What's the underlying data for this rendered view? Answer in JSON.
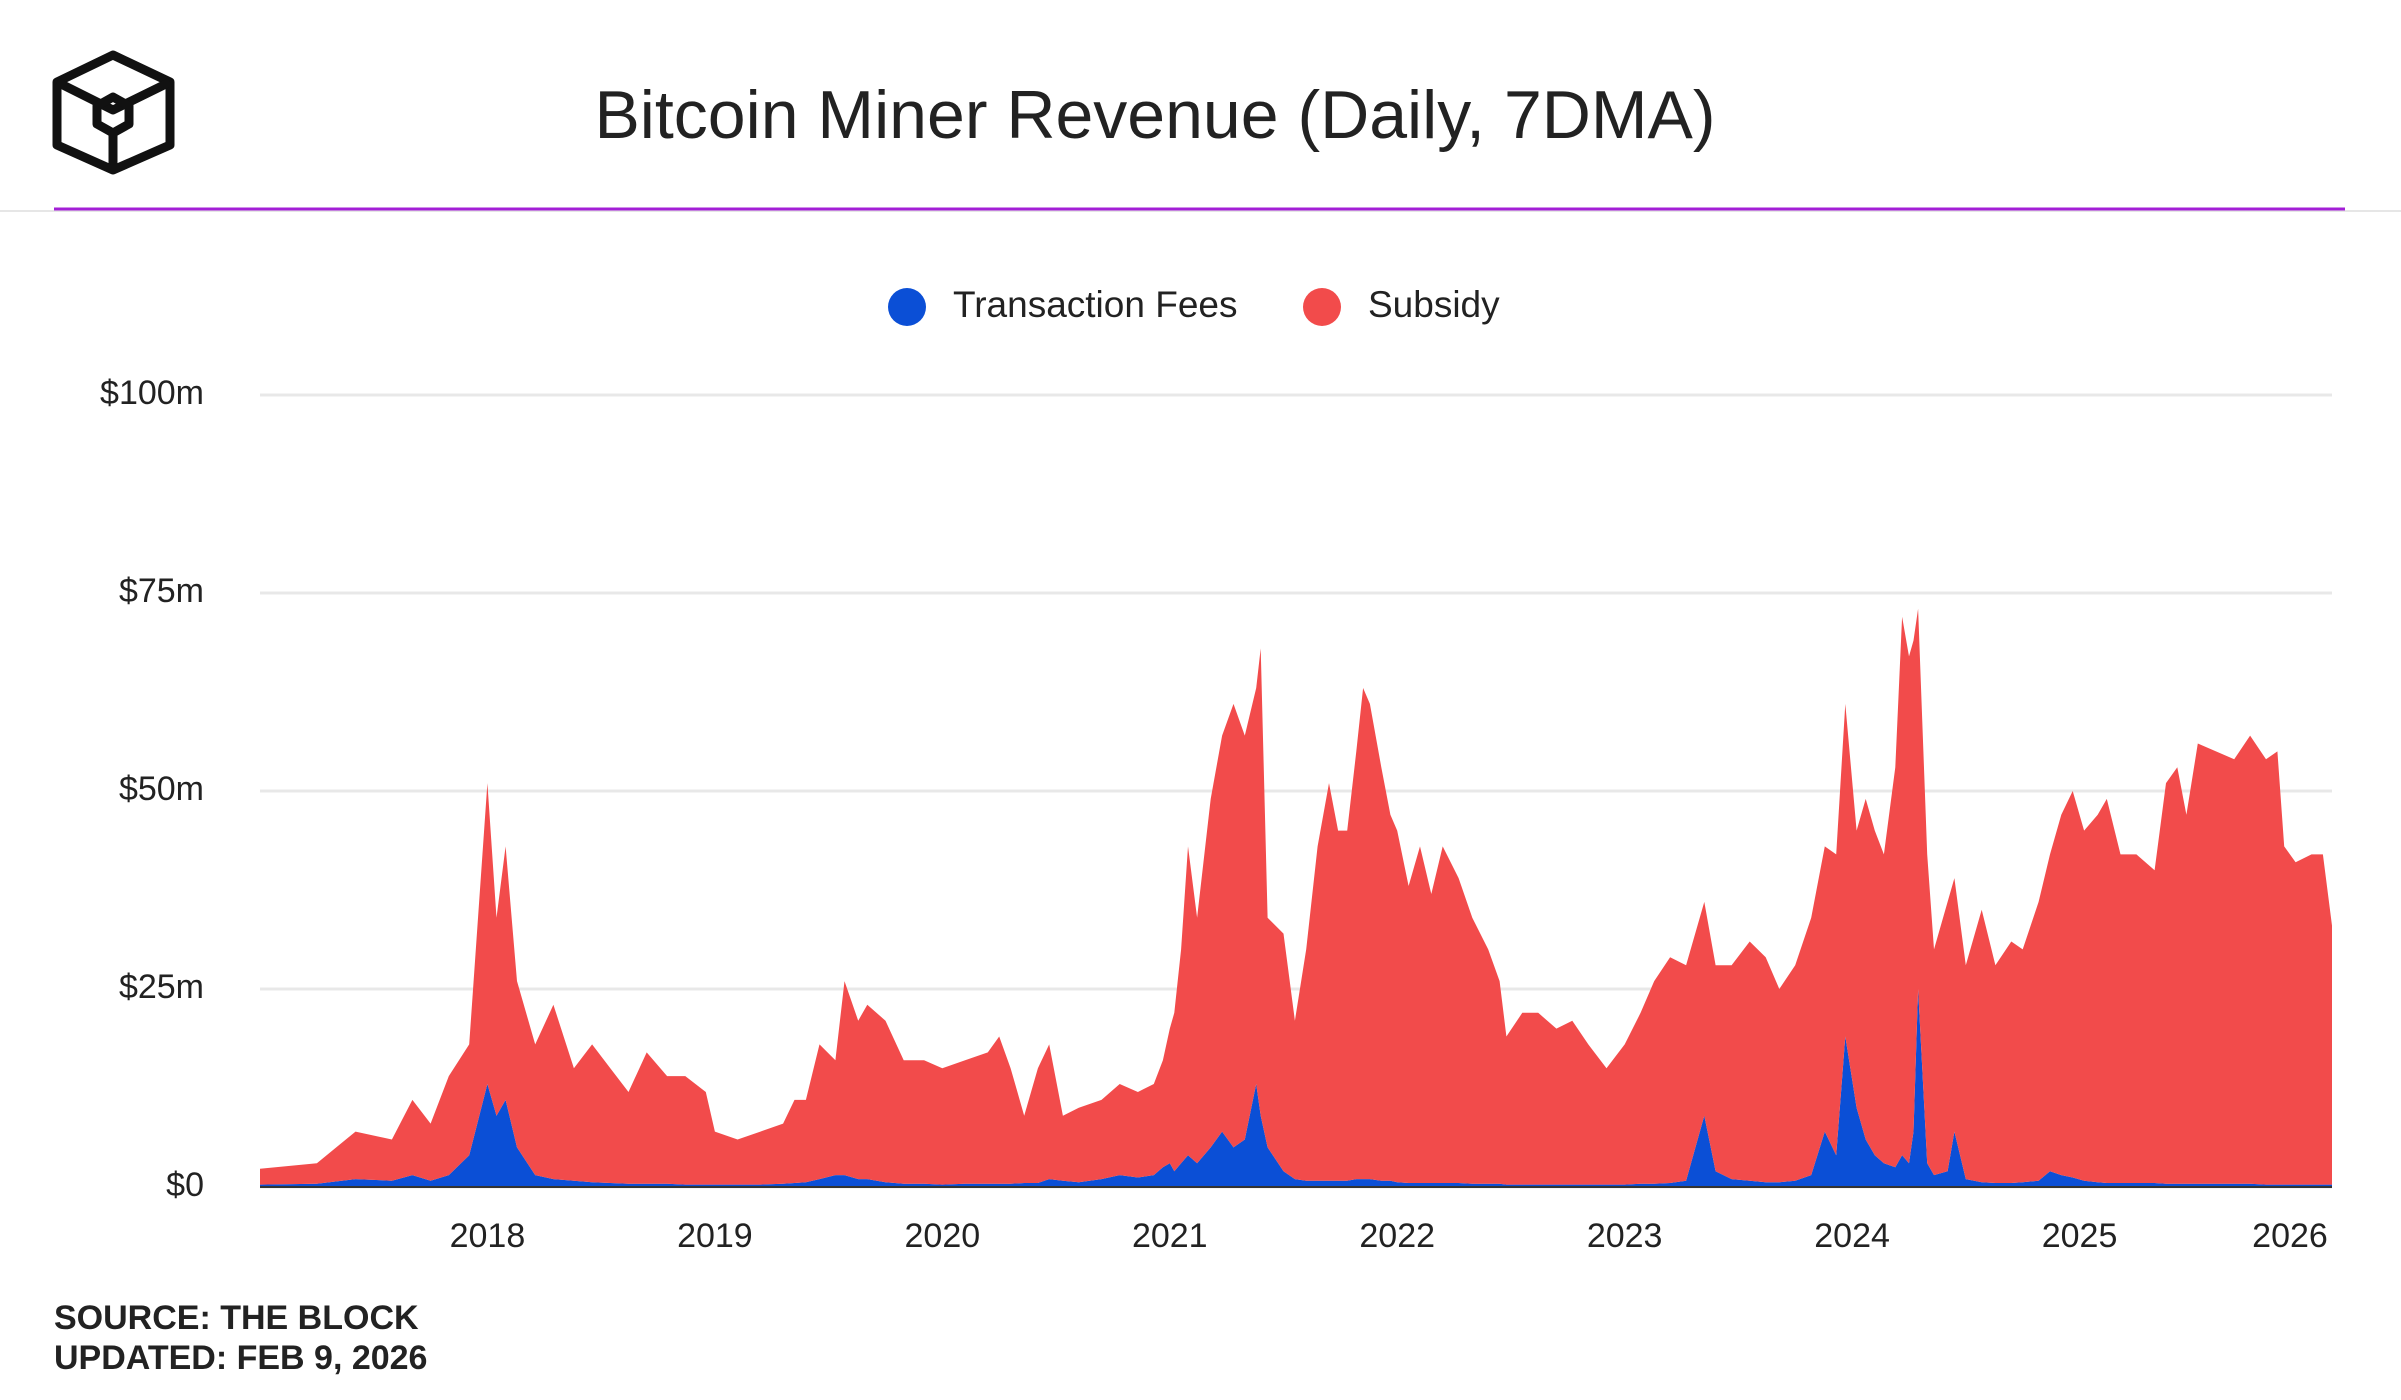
{
  "chart_data": {
    "type": "stacked-area",
    "title": "Bitcoin Miner Revenue (Daily, 7DMA)",
    "source": "SOURCE: THE BLOCK",
    "updated": "UPDATED: FEB 9, 2026",
    "x": [
      2017.0,
      2017.25,
      2017.42,
      2017.58,
      2017.67,
      2017.75,
      2017.83,
      2017.92,
      2018.0,
      2018.04,
      2018.08,
      2018.13,
      2018.21,
      2018.29,
      2018.38,
      2018.46,
      2018.54,
      2018.62,
      2018.7,
      2018.79,
      2018.87,
      2018.96,
      2019.0,
      2019.1,
      2019.2,
      2019.3,
      2019.35,
      2019.4,
      2019.46,
      2019.53,
      2019.57,
      2019.63,
      2019.67,
      2019.75,
      2019.83,
      2019.92,
      2020.0,
      2020.1,
      2020.2,
      2020.25,
      2020.3,
      2020.36,
      2020.42,
      2020.47,
      2020.53,
      2020.6,
      2020.7,
      2020.78,
      2020.86,
      2020.93,
      2020.97,
      2021.0,
      2021.02,
      2021.05,
      2021.08,
      2021.12,
      2021.18,
      2021.23,
      2021.28,
      2021.33,
      2021.38,
      2021.4,
      2021.43,
      2021.5,
      2021.55,
      2021.6,
      2021.65,
      2021.7,
      2021.74,
      2021.78,
      2021.82,
      2021.85,
      2021.88,
      2021.93,
      2021.97,
      2022.0,
      2022.05,
      2022.1,
      2022.15,
      2022.2,
      2022.27,
      2022.33,
      2022.4,
      2022.45,
      2022.48,
      2022.55,
      2022.62,
      2022.7,
      2022.77,
      2022.84,
      2022.92,
      2023.0,
      2023.07,
      2023.13,
      2023.2,
      2023.27,
      2023.35,
      2023.4,
      2023.47,
      2023.55,
      2023.62,
      2023.68,
      2023.75,
      2023.82,
      2023.88,
      2023.93,
      2023.97,
      2024.02,
      2024.06,
      2024.1,
      2024.14,
      2024.19,
      2024.22,
      2024.25,
      2024.27,
      2024.29,
      2024.33,
      2024.36,
      2024.42,
      2024.45,
      2024.5,
      2024.57,
      2024.63,
      2024.7,
      2024.75,
      2024.82,
      2024.87,
      2024.92,
      2024.97,
      2025.02,
      2025.08,
      2025.12,
      2025.18,
      2025.25,
      2025.33,
      2025.38,
      2025.43,
      2025.47,
      2025.52,
      2025.6,
      2025.68,
      2025.75,
      2025.82,
      2025.87,
      2025.9,
      2025.95,
      2026.02,
      2026.07,
      2026.11
    ],
    "series": [
      {
        "name": "Transaction Fees",
        "color": "#0b4fd6",
        "values": [
          0.3,
          0.4,
          1,
          0.8,
          1.5,
          0.8,
          1.5,
          4,
          13,
          9,
          11,
          5,
          1.5,
          1,
          0.8,
          0.6,
          0.5,
          0.4,
          0.4,
          0.4,
          0.3,
          0.3,
          0.3,
          0.3,
          0.3,
          0.4,
          0.5,
          0.6,
          1,
          1.5,
          1.5,
          1,
          1,
          0.6,
          0.4,
          0.4,
          0.3,
          0.4,
          0.4,
          0.4,
          0.4,
          0.5,
          0.5,
          1,
          0.8,
          0.6,
          1,
          1.5,
          1.2,
          1.5,
          2.5,
          3,
          2,
          3,
          4,
          3,
          5,
          7,
          5,
          6,
          13,
          9,
          5,
          2,
          1,
          0.8,
          0.8,
          0.8,
          0.8,
          0.8,
          1,
          1,
          1,
          0.8,
          0.8,
          0.6,
          0.5,
          0.5,
          0.5,
          0.5,
          0.5,
          0.4,
          0.4,
          0.4,
          0.3,
          0.3,
          0.3,
          0.3,
          0.3,
          0.3,
          0.3,
          0.3,
          0.4,
          0.4,
          0.5,
          0.8,
          9,
          2,
          1,
          0.8,
          0.6,
          0.6,
          0.8,
          1.5,
          7,
          4,
          19,
          10,
          6,
          4,
          3,
          2.5,
          4,
          3,
          7,
          25,
          3,
          1.5,
          2,
          7,
          1,
          0.6,
          0.5,
          0.5,
          0.6,
          0.8,
          2,
          1.5,
          1.2,
          0.8,
          0.6,
          0.5,
          0.5,
          0.5,
          0.5,
          0.4,
          0.4,
          0.4,
          0.4,
          0.4,
          0.4,
          0.4,
          0.3,
          0.3,
          0.3,
          0.3,
          0.3,
          0.3,
          0.3
        ]
      },
      {
        "name": "Subsidy",
        "color": "#f24b4b",
        "values": [
          2.0,
          2.6,
          6,
          5.2,
          9.5,
          7.2,
          12.5,
          14,
          38,
          25,
          32,
          21,
          16.5,
          22,
          14.2,
          17.4,
          14.5,
          11.6,
          16.6,
          13.6,
          13.7,
          11.7,
          6.7,
          5.7,
          6.7,
          7.6,
          10.5,
          10.4,
          17,
          14.5,
          24.5,
          20,
          22,
          20.4,
          15.6,
          15.6,
          14.7,
          15.6,
          16.6,
          18.6,
          14.6,
          8.5,
          14.5,
          17,
          8.2,
          9.4,
          10,
          11.5,
          10.8,
          11.5,
          13.5,
          17,
          20,
          27,
          39,
          31,
          44,
          50,
          56,
          51,
          50,
          59,
          29,
          30,
          20,
          29.2,
          42.2,
          50.2,
          44.2,
          44.2,
          54,
          62,
          60,
          52.2,
          46.2,
          44.4,
          37.5,
          42.5,
          36.5,
          42.5,
          38.5,
          33.6,
          29.6,
          25.6,
          18.7,
          21.7,
          21.7,
          19.7,
          20.7,
          17.7,
          14.7,
          17.7,
          21.6,
          25.6,
          28.5,
          27.2,
          27,
          26,
          27,
          30.2,
          28.4,
          24.4,
          27.2,
          32.5,
          36,
          38,
          42,
          35,
          43,
          41,
          39,
          50.5,
          68,
          64,
          62,
          48,
          39,
          28.5,
          34,
          32,
          27,
          34.4,
          27.5,
          30.5,
          29.4,
          35.2,
          40,
          45.5,
          48.8,
          44.2,
          46.4,
          48.5,
          41.5,
          41.5,
          39.5,
          50.6,
          52.6,
          46.6,
          55.6,
          54.6,
          53.6,
          56.6,
          53.7,
          54.7,
          42.7,
          40.7,
          41.7,
          41.7,
          32.7
        ]
      }
    ],
    "xlim": [
      2017.0,
      2026.11
    ],
    "xticks": [
      2018,
      2019,
      2020,
      2021,
      2022,
      2023,
      2024,
      2025,
      2026
    ],
    "ylim": [
      0,
      100
    ],
    "yticks": [
      {
        "value": 0,
        "label": "$0"
      },
      {
        "value": 25,
        "label": "$25m"
      },
      {
        "value": 50,
        "label": "$50m"
      },
      {
        "value": 75,
        "label": "$75m"
      },
      {
        "value": 100,
        "label": "$100m"
      }
    ],
    "grid": true,
    "legend": "top"
  }
}
